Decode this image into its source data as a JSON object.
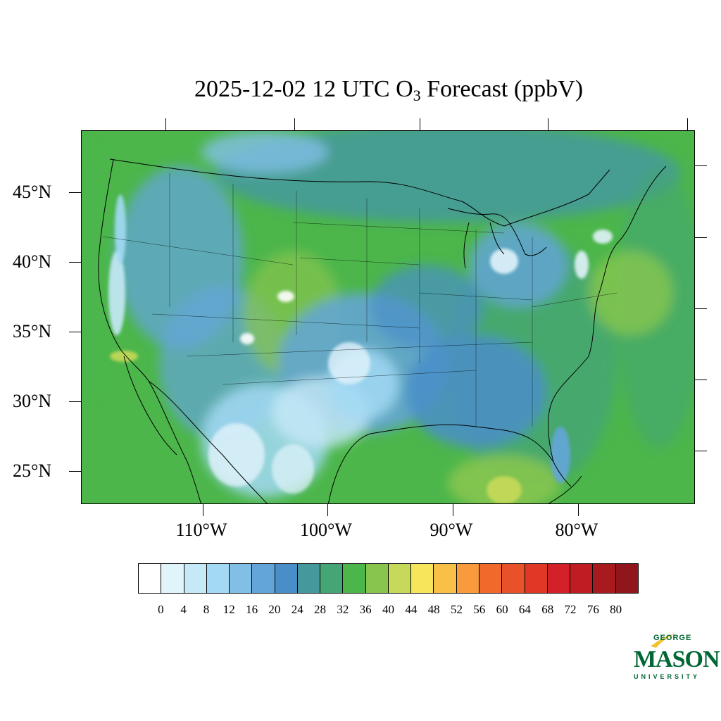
{
  "title": {
    "prefix": "2025-12-02 12 UTC O",
    "subscript": "3",
    "suffix": " Forecast (ppbV)"
  },
  "map": {
    "lat_labels": [
      "45°N",
      "40°N",
      "35°N",
      "30°N",
      "25°N"
    ],
    "lon_labels": [
      "110°W",
      "100°W",
      "90°W",
      "80°W"
    ]
  },
  "colorbar": {
    "colors": [
      "#ffffff",
      "#e1f3fb",
      "#c6e9f8",
      "#a3d9f5",
      "#82bfe6",
      "#64a5d9",
      "#4a8ec9",
      "#45999d",
      "#45a575",
      "#4cb64b",
      "#87c54f",
      "#c6d95a",
      "#f7e65c",
      "#f9c048",
      "#f99a3c",
      "#f16a2c",
      "#e8512a",
      "#df3827",
      "#d32029",
      "#bf1c24",
      "#a91a1f",
      "#90161c"
    ],
    "labels": [
      "0",
      "4",
      "8",
      "12",
      "16",
      "20",
      "24",
      "28",
      "32",
      "36",
      "40",
      "44",
      "48",
      "52",
      "56",
      "60",
      "64",
      "68",
      "72",
      "76",
      "80"
    ]
  },
  "logo": {
    "line1": "GEORGE",
    "line2": "MASON",
    "line3": "UNIVERSITY",
    "color": "#006633",
    "accent": "#f2c12e"
  }
}
